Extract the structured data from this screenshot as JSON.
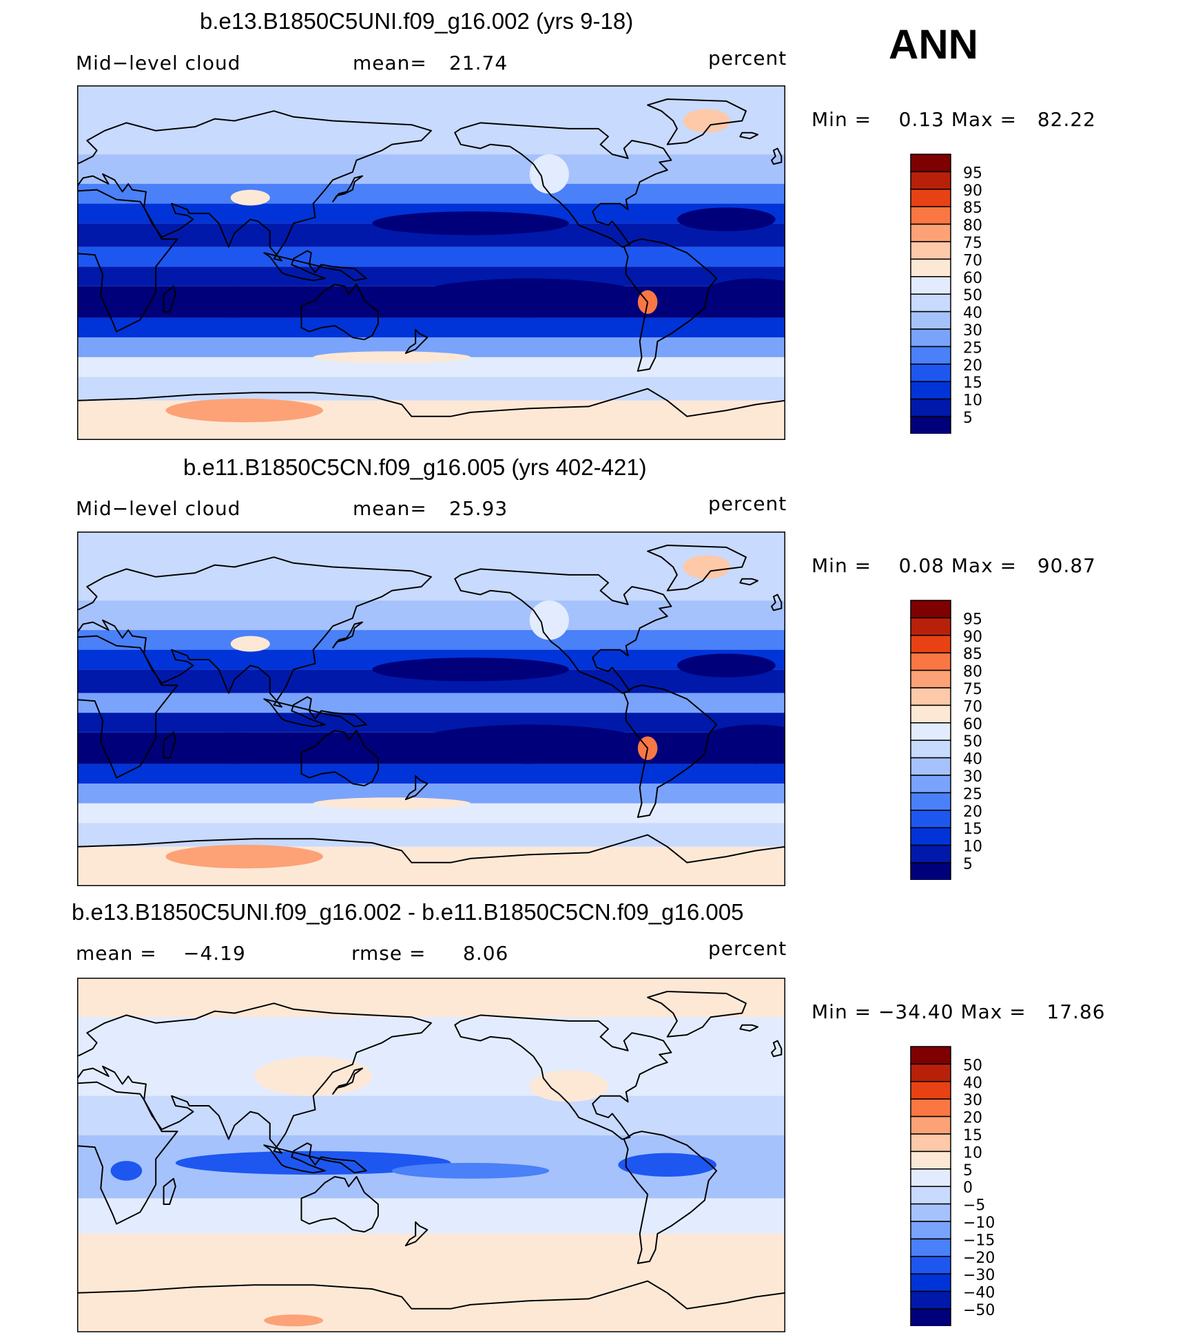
{
  "season": "ANN",
  "units": "percent",
  "panels": [
    {
      "title": "b.e13.B1850C5UNI.f09_g16.002 (yrs 9-18)",
      "field": "Mid−level cloud",
      "stat1_label": "mean=",
      "stat1_value": "21.74",
      "stat2_label": "",
      "stat2_value": "",
      "units": "percent",
      "minmax": "Min =    0.13 Max =   82.22",
      "colorbar_labels": [
        "95",
        "90",
        "85",
        "80",
        "75",
        "70",
        "60",
        "50",
        "40",
        "30",
        "25",
        "20",
        "15",
        "10",
        "5"
      ]
    },
    {
      "title": "b.e11.B1850C5CN.f09_g16.005 (yrs 402-421)",
      "field": "Mid−level cloud",
      "stat1_label": "mean=",
      "stat1_value": "25.93",
      "stat2_label": "",
      "stat2_value": "",
      "units": "percent",
      "minmax": "Min =    0.08 Max =   90.87",
      "colorbar_labels": [
        "95",
        "90",
        "85",
        "80",
        "75",
        "70",
        "60",
        "50",
        "40",
        "30",
        "25",
        "20",
        "15",
        "10",
        "5"
      ]
    },
    {
      "title": "b.e13.B1850C5UNI.f09_g16.002 - b.e11.B1850C5CN.f09_g16.005",
      "field": "",
      "stat1_label": "mean =",
      "stat1_value": "−4.19",
      "stat2_label": "rmse =",
      "stat2_value": "8.06",
      "units": "percent",
      "minmax": "Min = −34.40 Max =   17.86",
      "colorbar_labels": [
        "50",
        "40",
        "30",
        "20",
        "15",
        "10",
        "5",
        "0",
        "−5",
        "−10",
        "−15",
        "−20",
        "−30",
        "−40",
        "−50"
      ]
    }
  ],
  "colors": {
    "scale": [
      "#00007a",
      "#0019ab",
      "#0034d8",
      "#1d57f0",
      "#4a80f8",
      "#7aa3fb",
      "#a6c2fc",
      "#c8dafd",
      "#e2ecfe",
      "#fde8d6",
      "#fdc9a8",
      "#fca276",
      "#fa7744",
      "#e84214",
      "#b9200a",
      "#7e0000"
    ]
  }
}
